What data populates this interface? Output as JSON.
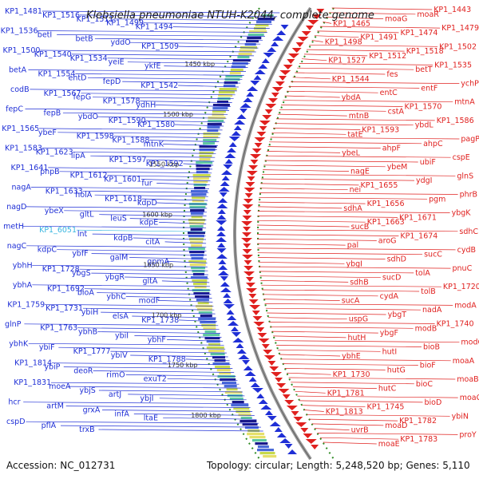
{
  "title": "Klebsiella pneumoniae NTUH-K2044, complete genome",
  "footer": {
    "accession": "Accession: NC_012731",
    "summary": "Topology: circular; Length: 5,248,520 bp; Genes: 5,110"
  },
  "ticks": [
    "1450 kbp",
    "1500 kbp",
    "1550 kbp",
    "1600 kbp",
    "1650 kbp",
    "1700 kbp",
    "1750 kbp",
    "1800 kbp"
  ],
  "forward_labels": [
    "KP1_1481",
    "KP1_1516",
    "KP1_1511",
    "KP1_1499",
    "KP1_1494",
    "KP1_1536",
    "betI",
    "betB",
    "yddO",
    "KP1_1509",
    "KP1_1500",
    "KP1_1540",
    "KP1_1534",
    "yeiE",
    "ykfE",
    "betA",
    "KP1_1554",
    "entD",
    "fepD",
    "KP1_1542",
    "codB",
    "KP1_1567",
    "fepG",
    "KP1_1578",
    "ydhH",
    "fepC",
    "fepB",
    "ybdO",
    "KP1_1590",
    "KP1_1580",
    "KP1_1565",
    "ybeF",
    "KP1_1598",
    "KP1_1588",
    "mtnK",
    "KP1_1583",
    "KP1_1623",
    "lipA",
    "KP1_1597",
    "KP1_1592",
    "KP1_1641",
    "phpB",
    "KP1_1612",
    "KP1_1601",
    "fur",
    "nagA",
    "KP1_1633",
    "holA",
    "KP1_1618",
    "kdpD",
    "nagD",
    "ybeX",
    "gltL",
    "leuS",
    "kdpE",
    "metH",
    "KP1_6051",
    "lnt",
    "kdpB",
    "citA",
    "nagC",
    "kdpC",
    "ybfF",
    "galM",
    "gpmA",
    "ybhH",
    "KP1_1728",
    "ybgS",
    "ybgR",
    "gltA",
    "ybhA",
    "KP1_1692",
    "bioA",
    "ybhC",
    "modF",
    "KP1_1759",
    "KP1_1731",
    "ybiH",
    "elsA",
    "KP1_1738",
    "glnP",
    "KP1_1763",
    "ybhB",
    "ybiI",
    "ybhF",
    "ybhK",
    "ybiF",
    "KP1_1777",
    "ybiV",
    "KP1_1788",
    "KP1_1814",
    "ybiP",
    "deoR",
    "rimO",
    "exuT2",
    "KP1_1831",
    "moeA",
    "ybjS",
    "artJ",
    "ybjI",
    "hcr",
    "artM",
    "grxA",
    "infA",
    "ltaE",
    "cspD",
    "pflA",
    "trxB"
  ],
  "reverse_labels": [
    "KP1_1443",
    "moaR",
    "moaG",
    "KP1_1465",
    "KP1_1479",
    "KP1_1474",
    "KP1_1491",
    "KP1_1498",
    "KP1_1502",
    "KP1_1518",
    "KP1_1512",
    "KP1_1527",
    "KP1_1535",
    "betT",
    "fes",
    "KP1_1544",
    "ychP",
    "entF",
    "entC",
    "ybdA",
    "mtnA",
    "KP1_1570",
    "cstA",
    "mtnB",
    "KP1_1586",
    "ybdL",
    "KP1_1593",
    "tatE",
    "pagP",
    "ahpC",
    "ahpF",
    "ybeL",
    "cspE",
    "ubiF",
    "ybeM",
    "nagE",
    "glnS",
    "ydgI",
    "KP1_1655",
    "nei",
    "phrB",
    "pgm",
    "KP1_1656",
    "sdhA",
    "ybgK",
    "KP1_1671",
    "KP1_1663",
    "sucB",
    "sdhC",
    "KP1_1674",
    "aroG",
    "pal",
    "cydB",
    "sucC",
    "sdhD",
    "ybgI",
    "pnuC",
    "tolA",
    "sucD",
    "sdhB",
    "KP1_1720",
    "tolB",
    "cydA",
    "sucA",
    "modA",
    "nadA",
    "ybgT",
    "uspG",
    "KP1_1740",
    "modB",
    "ybgF",
    "hutH",
    "modC",
    "bioB",
    "hutI",
    "ybhE",
    "moaA",
    "bioF",
    "hutG",
    "KP1_1730",
    "moaB",
    "bioC",
    "hutC",
    "KP1_1781",
    "moaC",
    "bioD",
    "KP1_1745",
    "KP1_1813",
    "ybiN",
    "KP1_1782",
    "moaD",
    "uvrB",
    "proY",
    "KP1_1783",
    "moaE"
  ],
  "colors": {
    "forward": "#1f2fd6",
    "reverse": "#e0211f",
    "highlight": "#38b6e0",
    "backbone": "#9a9a9a",
    "gc": "#2e8b22"
  }
}
